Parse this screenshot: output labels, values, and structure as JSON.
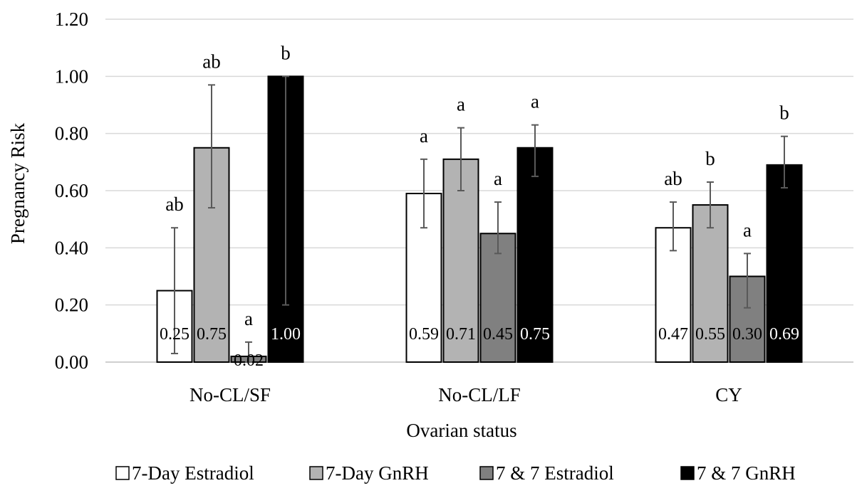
{
  "chart_data": {
    "type": "bar",
    "title": "",
    "xlabel": "Ovarian status",
    "ylabel": "Pregnancy Risk",
    "ylim": [
      0,
      1.2
    ],
    "yticks": [
      "0.00",
      "0.20",
      "0.40",
      "0.60",
      "0.80",
      "1.00",
      "1.20"
    ],
    "grid": true,
    "legend_position": "bottom",
    "categories": [
      "No-CL/SF",
      "No-CL/LF",
      "CY"
    ],
    "series": [
      {
        "name": "7-Day Estradiol",
        "color": "#ffffff",
        "values": [
          0.25,
          0.59,
          0.47
        ],
        "labels": [
          "0.25",
          "0.59",
          "0.47"
        ],
        "error_low": [
          0.03,
          0.47,
          0.39
        ],
        "error_high": [
          0.47,
          0.71,
          0.56
        ],
        "letters": [
          "ab",
          "a",
          "ab"
        ]
      },
      {
        "name": "7-Day GnRH",
        "color": "#b3b3b3",
        "values": [
          0.75,
          0.71,
          0.55
        ],
        "labels": [
          "0.75",
          "0.71",
          "0.55"
        ],
        "error_low": [
          0.54,
          0.6,
          0.47
        ],
        "error_high": [
          0.97,
          0.82,
          0.63
        ],
        "letters": [
          "ab",
          "a",
          "b"
        ]
      },
      {
        "name": "7 & 7 Estradiol",
        "color": "#808080",
        "values": [
          0.02,
          0.45,
          0.3
        ],
        "labels": [
          "0.02",
          "0.45",
          "0.30"
        ],
        "error_low": [
          0.0,
          0.38,
          0.19
        ],
        "error_high": [
          0.07,
          0.56,
          0.38
        ],
        "letters": [
          "a",
          "a",
          "a"
        ]
      },
      {
        "name": "7 & 7 GnRH",
        "color": "#000000",
        "values": [
          1.0,
          0.75,
          0.69
        ],
        "labels": [
          "1.00",
          "0.75",
          "0.69"
        ],
        "error_low": [
          0.2,
          0.65,
          0.61
        ],
        "error_high": [
          1.0,
          0.83,
          0.79
        ],
        "letters": [
          "b",
          "a",
          "b"
        ]
      }
    ]
  }
}
